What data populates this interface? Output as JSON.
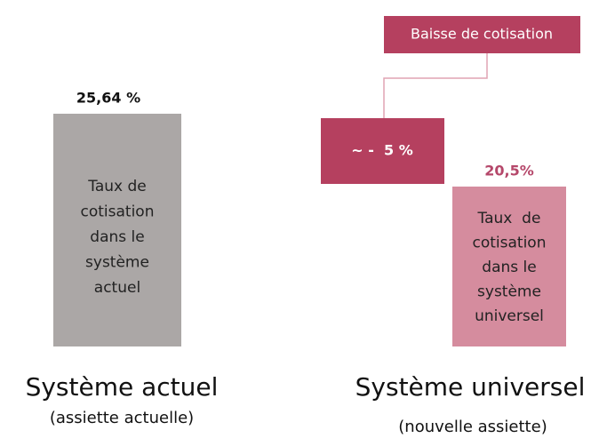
{
  "diagram": {
    "current": {
      "value": "25,64 %",
      "box_lines": [
        "Taux de",
        "cotisation",
        "dans le",
        "système",
        "actuel"
      ],
      "title": "Système actuel",
      "subtitle": "(assiette actuelle)"
    },
    "drop": {
      "label": "Baisse de cotisation",
      "value": "~ -  5 %"
    },
    "universal": {
      "value": "20,5%",
      "box_lines": [
        "Taux  de",
        "cotisation",
        "dans le",
        "système",
        "universel"
      ],
      "title": "Système universel",
      "subtitle": "(nouvelle assiette)"
    }
  }
}
